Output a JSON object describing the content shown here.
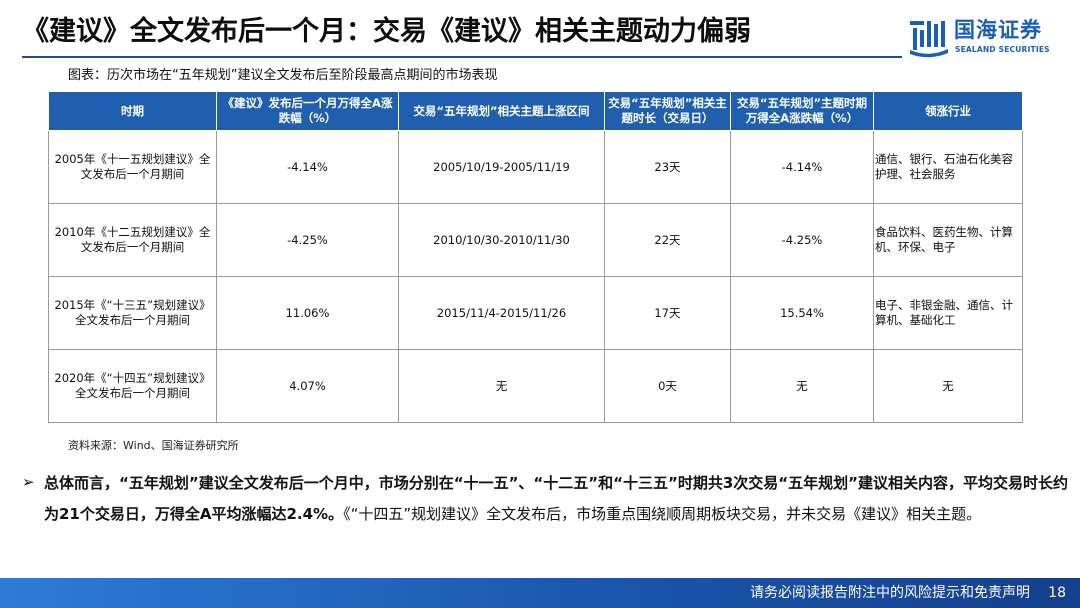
{
  "title": "《建议》全文发布后一个月：交易《建议》相关主题动力偏弱",
  "logo": {
    "name_cn": "国海证券",
    "name_en": "SEALAND SECURITIES"
  },
  "caption": "图表：历次市场在“五年规划”建议全文发布后至阶段最高点期间的市场表现",
  "table": {
    "headers": [
      "时期",
      "《建议》发布后一个月万得全A涨跌幅（%）",
      "交易“五年规划”相关主题上涨区间",
      "交易“五年规划”相关主题时长（交易日）",
      "交易“五年规划”主题时期万得全A涨跌幅（%）",
      "领涨行业"
    ],
    "rows": [
      [
        "2005年《十一五规划建议》全文发布后一个月期间",
        "-4.14%",
        "2005/10/19-2005/11/19",
        "23天",
        "-4.14%",
        "通信、银行、石油石化美容护理、社会服务"
      ],
      [
        "2010年《十二五规划建议》全文发布后一个月期间",
        "-4.25%",
        "2010/10/30-2010/11/30",
        "22天",
        "-4.25%",
        "食品饮料、医药生物、计算机、环保、电子"
      ],
      [
        "2015年《“十三五”规划建议》全文发布后一个月期间",
        "11.06%",
        "2015/11/4-2015/11/26",
        "17天",
        "15.54%",
        "电子、非银金融、通信、计算机、基础化工"
      ],
      [
        "2020年《“十四五”规划建议》全文发布后一个月期间",
        "4.07%",
        "无",
        "0天",
        "无",
        "无"
      ]
    ]
  },
  "source": "资料来源：Wind、国海证券研究所",
  "summary": {
    "bold": "总体而言，“五年规划”建议全文发布后一个月中，市场分别在“十一五”、“十二五”和“十三五”时期共3次交易“五年规划”建议相关内容，平均交易时长约为21个交易日，万得全A平均涨幅达2.4%。",
    "normal": "《“十四五”规划建议》全文发布后，市场重点围绕顺周期板块交易，并未交易《建议》相关主题。"
  },
  "footer": {
    "disclaimer": "请务必阅读报告附注中的风险提示和免责声明",
    "page": "18"
  },
  "colors": {
    "header_blue": "#1f5fae",
    "brand_blue": "#1b5fb4"
  }
}
